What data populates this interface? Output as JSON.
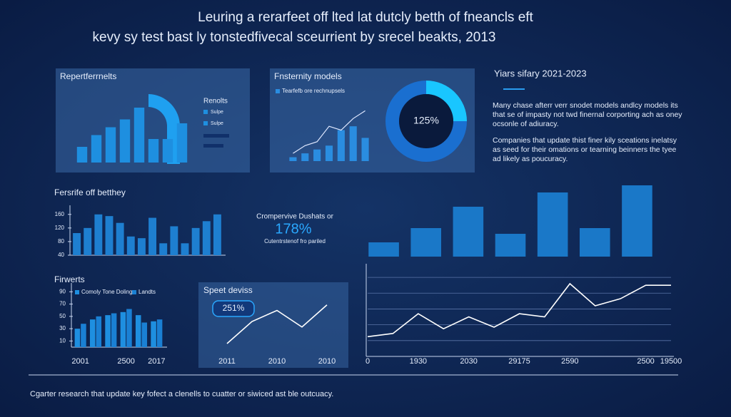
{
  "header": {
    "title": [
      "Leuring a rerarfeet off lted lat dutcly betth of fneancls eft",
      "kevy sy test bast ly tonstedfivecal sceurrient by srecel beakts, 2013"
    ]
  },
  "side": {
    "heading": "Yiars sifary 2021-2023",
    "paragraphs": [
      "Many chase afterr verr snodet models andlcy models its that se of impasty not twd finernal corporting ach as oney ocsonle of adiuracy.",
      "Companies that update thist finer kily sceations inelatsy as seed for their omations or tearning beinners the tyee ad likely as poucuracy."
    ]
  },
  "callout": {
    "heading": "Crompervive Dushats or",
    "value": "178%",
    "caption": "Cutentrstenof fro pariled"
  },
  "footer": "Cgarter research that update key fofect a clenells to cuatter or siwiced ast ble outcuacy.",
  "chart_data": [
    {
      "type": "bar",
      "title": "Repertferrnelts",
      "values": [
        4,
        7,
        9,
        11,
        14,
        6,
        6,
        10
      ],
      "color": "#1e8fe0",
      "ylim": [
        0,
        16
      ],
      "legend_title": "Renolts",
      "legend": [
        "Sulpe",
        "Sulpe"
      ]
    },
    {
      "type": "bar_line",
      "title": "Fnsternity models",
      "ylim": [
        0,
        14
      ],
      "series": [
        {
          "name": "Tearfefb ore rechnupsels",
          "color": "#2a8de0",
          "values": [
            1,
            2,
            3,
            4,
            8,
            9,
            6
          ]
        },
        {
          "color": "#dfe8ff",
          "values": [
            2,
            4,
            5,
            9,
            8,
            11,
            13
          ]
        }
      ]
    },
    {
      "type": "donut",
      "values": [
        25,
        75
      ],
      "colors": [
        "#19c6ff",
        "#1a6fd0"
      ],
      "center_label": "125%"
    },
    {
      "type": "bar",
      "title": "Fersrife off betthey",
      "values": [
        105,
        120,
        160,
        155,
        135,
        95,
        90,
        150,
        75,
        125,
        75,
        120,
        140,
        160
      ],
      "color": "#1e7fd0",
      "ylim": [
        40,
        170
      ],
      "yticks": [
        40,
        80,
        120,
        160
      ]
    },
    {
      "type": "bar",
      "values": [
        20,
        40,
        70,
        32,
        90,
        40,
        100
      ],
      "color": "#1a78c8",
      "ylim": [
        0,
        100
      ]
    },
    {
      "type": "bar",
      "title": "Firwerts",
      "categories": [
        "2001",
        null,
        null,
        "2500",
        null,
        "2017"
      ],
      "ylim": [
        0,
        95
      ],
      "yticks": [
        10,
        30,
        50,
        70,
        90
      ],
      "series": [
        {
          "name": "Comoly Tone Doling",
          "color": "#1e8fe0",
          "values": [
            30,
            45,
            52,
            57,
            52,
            42
          ]
        },
        {
          "name": "Landts",
          "color": "#1a80d4",
          "values": [
            38,
            50,
            55,
            62,
            40,
            45
          ]
        }
      ]
    },
    {
      "type": "line",
      "title": "Speet deviss",
      "categories": [
        "2011",
        null,
        "2010",
        null,
        "2010"
      ],
      "values": [
        0,
        40,
        60,
        30,
        70
      ],
      "color": "#ffffff",
      "ylim": [
        0,
        80
      ],
      "annotation": "251%"
    },
    {
      "type": "line",
      "categories": [
        "0",
        null,
        "1930",
        null,
        "2030",
        null,
        "29175",
        null,
        "2590",
        null,
        null,
        "2500",
        "19500"
      ],
      "values": [
        25,
        29,
        54,
        35,
        50,
        37,
        54,
        50,
        92,
        64,
        73,
        90,
        90
      ],
      "color": "#ffffff",
      "ylim": [
        0,
        110
      ],
      "yticks": [
        20,
        40,
        60,
        80,
        100
      ],
      "grid": true,
      "tick_labels": false
    }
  ]
}
